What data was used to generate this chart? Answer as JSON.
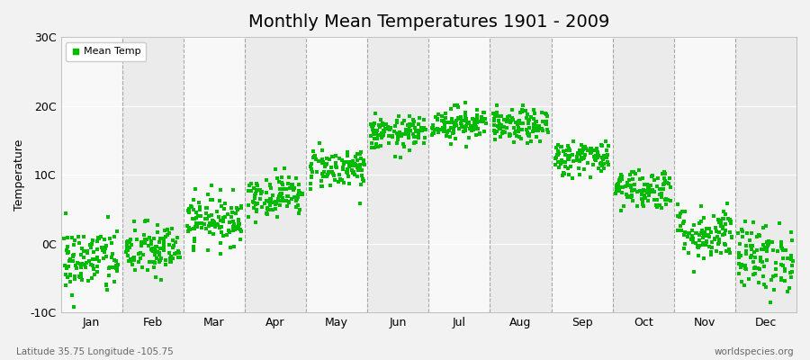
{
  "title": "Monthly Mean Temperatures 1901 - 2009",
  "ylabel": "Temperature",
  "xlabel": "",
  "ylim": [
    -10,
    30
  ],
  "yticks": [
    -10,
    0,
    10,
    20,
    30
  ],
  "ytick_labels": [
    "-10C",
    "0C",
    "10C",
    "20C",
    "30C"
  ],
  "months": [
    "Jan",
    "Feb",
    "Mar",
    "Apr",
    "May",
    "Jun",
    "Jul",
    "Aug",
    "Sep",
    "Oct",
    "Nov",
    "Dec"
  ],
  "dot_color": "#00bb00",
  "dot_size": 5,
  "figure_bg": "#f2f2f2",
  "plot_bg_light": "#f8f8f8",
  "plot_bg_dark": "#ebebeb",
  "dashed_line_color": "#888888",
  "watermark_left": "Latitude 35.75 Longitude -105.75",
  "watermark_right": "worldspecies.org",
  "legend_label": "Mean Temp",
  "title_fontsize": 14,
  "month_means": [
    -2.5,
    -1.0,
    3.5,
    7.0,
    11.0,
    16.0,
    17.5,
    17.0,
    12.5,
    8.0,
    1.5,
    -2.0
  ],
  "month_stds": [
    2.5,
    2.0,
    1.8,
    1.5,
    1.5,
    1.2,
    1.2,
    1.2,
    1.3,
    1.5,
    2.0,
    2.5
  ]
}
